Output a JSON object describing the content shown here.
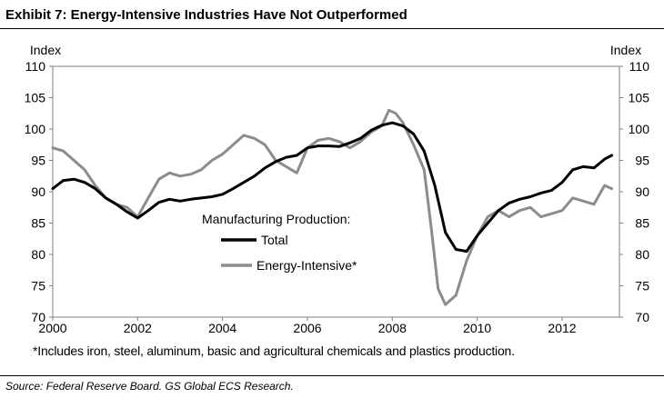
{
  "title": "Exhibit 7: Energy-Intensive Industries Have Not Outperformed",
  "footnote": "*Includes iron, steel, aluminum, basic and agricultural chemicals and plastics production.",
  "source": "Source: Federal Reserve Board. GS Global ECS Research.",
  "chart_data": {
    "type": "line",
    "ylabel_left": "Index",
    "ylabel_right": "Index",
    "ylim": [
      70,
      110
    ],
    "y_ticks": [
      70,
      75,
      80,
      85,
      90,
      95,
      100,
      105,
      110
    ],
    "xlim": [
      2000,
      2013.35
    ],
    "x_ticks": [
      2000,
      2002,
      2004,
      2006,
      2008,
      2010,
      2012
    ],
    "grid": false,
    "legend_title": "Manufacturing Production:",
    "legend_position": "center",
    "series": [
      {
        "name": "Total",
        "color": "#000000",
        "x": [
          2000.0,
          2000.25,
          2000.5,
          2000.75,
          2001.0,
          2001.25,
          2001.5,
          2001.75,
          2002.0,
          2002.25,
          2002.5,
          2002.75,
          2003.0,
          2003.25,
          2003.5,
          2003.75,
          2004.0,
          2004.25,
          2004.5,
          2004.75,
          2005.0,
          2005.25,
          2005.5,
          2005.75,
          2006.0,
          2006.25,
          2006.5,
          2006.75,
          2007.0,
          2007.25,
          2007.5,
          2007.75,
          2008.0,
          2008.25,
          2008.5,
          2008.75,
          2009.0,
          2009.25,
          2009.5,
          2009.75,
          2010.0,
          2010.25,
          2010.5,
          2010.75,
          2011.0,
          2011.25,
          2011.5,
          2011.75,
          2012.0,
          2012.25,
          2012.5,
          2012.75,
          2013.0,
          2013.17
        ],
        "values": [
          90.5,
          91.8,
          92.0,
          91.5,
          90.5,
          89.0,
          88.0,
          86.8,
          85.8,
          87.0,
          88.3,
          88.8,
          88.5,
          88.8,
          89.0,
          89.2,
          89.6,
          90.5,
          91.5,
          92.5,
          93.8,
          94.8,
          95.5,
          95.8,
          97.0,
          97.3,
          97.3,
          97.2,
          97.8,
          98.5,
          99.8,
          100.6,
          101.0,
          100.5,
          99.2,
          96.5,
          91.0,
          83.5,
          80.8,
          80.5,
          83.0,
          85.0,
          87.0,
          88.2,
          88.8,
          89.2,
          89.8,
          90.2,
          91.5,
          93.5,
          94.0,
          93.8,
          95.2,
          95.8
        ]
      },
      {
        "name": "Energy-Intensive*",
        "color": "#8c8c8c",
        "x": [
          2000.0,
          2000.25,
          2000.5,
          2000.75,
          2001.0,
          2001.25,
          2001.5,
          2001.75,
          2002.0,
          2002.25,
          2002.5,
          2002.75,
          2003.0,
          2003.25,
          2003.5,
          2003.75,
          2004.0,
          2004.25,
          2004.5,
          2004.75,
          2005.0,
          2005.25,
          2005.5,
          2005.75,
          2006.0,
          2006.25,
          2006.5,
          2006.75,
          2007.0,
          2007.25,
          2007.5,
          2007.75,
          2007.92,
          2008.08,
          2008.25,
          2008.5,
          2008.75,
          2008.92,
          2009.08,
          2009.25,
          2009.5,
          2009.75,
          2010.0,
          2010.25,
          2010.5,
          2010.75,
          2011.0,
          2011.25,
          2011.5,
          2011.75,
          2012.0,
          2012.25,
          2012.5,
          2012.75,
          2013.0,
          2013.17
        ],
        "values": [
          97.0,
          96.5,
          95.0,
          93.5,
          91.0,
          89.0,
          88.0,
          87.5,
          86.0,
          89.0,
          92.0,
          93.0,
          92.5,
          92.8,
          93.5,
          95.0,
          96.0,
          97.5,
          99.0,
          98.5,
          97.5,
          95.0,
          94.0,
          93.0,
          97.0,
          98.2,
          98.5,
          98.0,
          97.0,
          98.0,
          99.5,
          100.5,
          103.0,
          102.5,
          101.0,
          97.5,
          93.5,
          84.0,
          74.5,
          72.0,
          73.5,
          79.0,
          83.0,
          86.0,
          87.0,
          86.0,
          87.0,
          87.5,
          86.0,
          86.5,
          87.0,
          89.0,
          88.5,
          88.0,
          91.0,
          90.5
        ]
      }
    ]
  }
}
